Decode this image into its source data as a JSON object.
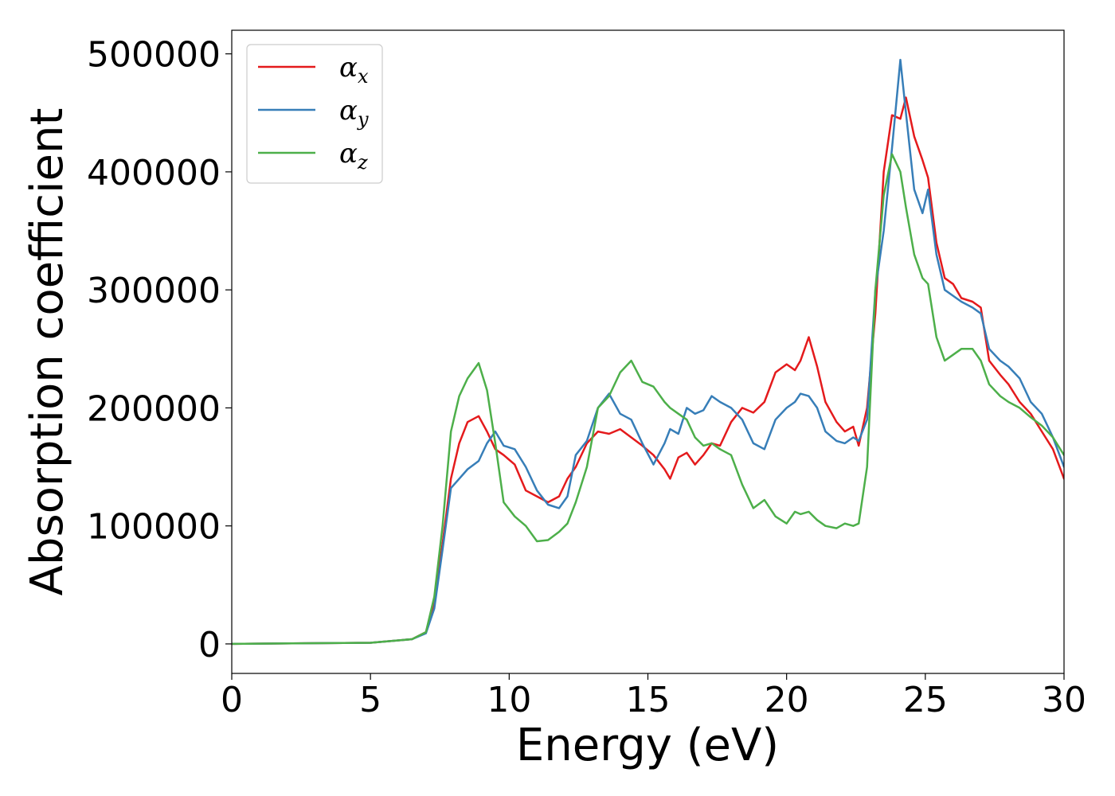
{
  "chart_data": {
    "type": "line",
    "title": "",
    "xlabel": "Energy (eV)",
    "ylabel": "Absorption coefficient",
    "xlim": [
      0,
      30
    ],
    "ylim": [
      -25000,
      520000
    ],
    "xticks": [
      "0",
      "5",
      "10",
      "15",
      "20",
      "25",
      "30"
    ],
    "yticks": [
      "0",
      "100000",
      "200000",
      "300000",
      "400000",
      "500000"
    ],
    "grid": false,
    "legend_position": "top-left",
    "series": [
      {
        "name": "αx",
        "name_base": "α",
        "name_sub": "x",
        "color": "#e41a1c",
        "x": [
          0,
          5,
          6.5,
          7.0,
          7.3,
          7.6,
          7.9,
          8.2,
          8.5,
          8.9,
          9.2,
          9.5,
          9.8,
          10.2,
          10.6,
          11.0,
          11.4,
          11.8,
          12.1,
          12.4,
          12.8,
          13.2,
          13.6,
          14.0,
          14.4,
          14.8,
          15.2,
          15.6,
          15.8,
          16.1,
          16.4,
          16.7,
          17.0,
          17.3,
          17.6,
          18.0,
          18.4,
          18.8,
          19.2,
          19.6,
          20.0,
          20.3,
          20.5,
          20.8,
          21.1,
          21.4,
          21.8,
          22.1,
          22.4,
          22.6,
          22.9,
          23.2,
          23.5,
          23.8,
          24.1,
          24.3,
          24.6,
          24.9,
          25.1,
          25.4,
          25.7,
          26.0,
          26.3,
          26.7,
          27.0,
          27.3,
          27.7,
          28.0,
          28.4,
          28.8,
          29.2,
          29.6,
          30
        ],
        "values": [
          0,
          1000,
          4000,
          10000,
          35000,
          85000,
          140000,
          170000,
          188000,
          193000,
          180000,
          165000,
          160000,
          152000,
          130000,
          125000,
          120000,
          125000,
          140000,
          150000,
          170000,
          180000,
          178000,
          182000,
          175000,
          168000,
          160000,
          148000,
          140000,
          158000,
          162000,
          152000,
          160000,
          170000,
          168000,
          188000,
          200000,
          196000,
          205000,
          230000,
          237000,
          232000,
          240000,
          260000,
          235000,
          205000,
          188000,
          180000,
          184000,
          168000,
          200000,
          280000,
          400000,
          448000,
          445000,
          463000,
          430000,
          410000,
          395000,
          340000,
          310000,
          305000,
          293000,
          290000,
          285000,
          240000,
          228000,
          220000,
          205000,
          195000,
          180000,
          165000,
          140000
        ]
      },
      {
        "name": "αy",
        "name_base": "α",
        "name_sub": "y",
        "color": "#377eb8",
        "x": [
          0,
          5,
          6.5,
          7.0,
          7.3,
          7.6,
          7.9,
          8.2,
          8.5,
          8.9,
          9.2,
          9.5,
          9.8,
          10.2,
          10.6,
          11.0,
          11.4,
          11.8,
          12.1,
          12.4,
          12.8,
          13.2,
          13.6,
          14.0,
          14.4,
          14.8,
          15.2,
          15.6,
          15.8,
          16.1,
          16.4,
          16.7,
          17.0,
          17.3,
          17.6,
          18.0,
          18.4,
          18.8,
          19.2,
          19.6,
          20.0,
          20.3,
          20.5,
          20.8,
          21.1,
          21.4,
          21.8,
          22.1,
          22.4,
          22.6,
          22.9,
          23.2,
          23.5,
          23.8,
          24.1,
          24.3,
          24.6,
          24.9,
          25.1,
          25.4,
          25.7,
          26.0,
          26.3,
          26.7,
          27.0,
          27.3,
          27.7,
          28.0,
          28.4,
          28.8,
          29.2,
          29.6,
          30
        ],
        "values": [
          0,
          1000,
          4000,
          9000,
          30000,
          80000,
          132000,
          140000,
          148000,
          155000,
          170000,
          180000,
          168000,
          165000,
          150000,
          130000,
          118000,
          115000,
          125000,
          160000,
          172000,
          200000,
          212000,
          195000,
          190000,
          170000,
          152000,
          170000,
          182000,
          178000,
          200000,
          195000,
          198000,
          210000,
          205000,
          200000,
          190000,
          170000,
          165000,
          190000,
          200000,
          205000,
          212000,
          210000,
          200000,
          180000,
          172000,
          170000,
          175000,
          172000,
          190000,
          300000,
          350000,
          420000,
          495000,
          450000,
          385000,
          365000,
          385000,
          330000,
          300000,
          295000,
          290000,
          285000,
          280000,
          250000,
          240000,
          235000,
          225000,
          205000,
          195000,
          175000,
          150000
        ]
      },
      {
        "name": "αz",
        "name_base": "α",
        "name_sub": "z",
        "color": "#4daf4a",
        "x": [
          0,
          5,
          6.5,
          7.0,
          7.3,
          7.6,
          7.9,
          8.2,
          8.5,
          8.9,
          9.2,
          9.5,
          9.8,
          10.2,
          10.6,
          11.0,
          11.4,
          11.8,
          12.1,
          12.4,
          12.8,
          13.2,
          13.6,
          14.0,
          14.4,
          14.8,
          15.2,
          15.6,
          15.8,
          16.1,
          16.4,
          16.7,
          17.0,
          17.3,
          17.6,
          18.0,
          18.4,
          18.8,
          19.2,
          19.6,
          20.0,
          20.3,
          20.5,
          20.8,
          21.1,
          21.4,
          21.8,
          22.1,
          22.4,
          22.6,
          22.9,
          23.2,
          23.5,
          23.8,
          24.1,
          24.3,
          24.6,
          24.9,
          25.1,
          25.4,
          25.7,
          26.0,
          26.3,
          26.7,
          27.0,
          27.3,
          27.7,
          28.0,
          28.4,
          28.8,
          29.2,
          29.6,
          30
        ],
        "values": [
          0,
          1000,
          4000,
          10000,
          40000,
          100000,
          180000,
          210000,
          225000,
          238000,
          215000,
          170000,
          120000,
          108000,
          100000,
          87000,
          88000,
          95000,
          102000,
          120000,
          150000,
          200000,
          210000,
          230000,
          240000,
          222000,
          218000,
          205000,
          200000,
          195000,
          190000,
          175000,
          168000,
          170000,
          165000,
          160000,
          135000,
          115000,
          122000,
          108000,
          102000,
          112000,
          110000,
          112000,
          105000,
          100000,
          98000,
          102000,
          100000,
          102000,
          150000,
          300000,
          380000,
          415000,
          400000,
          370000,
          330000,
          310000,
          305000,
          260000,
          240000,
          245000,
          250000,
          250000,
          240000,
          220000,
          210000,
          205000,
          200000,
          192000,
          185000,
          175000,
          160000
        ]
      }
    ]
  }
}
